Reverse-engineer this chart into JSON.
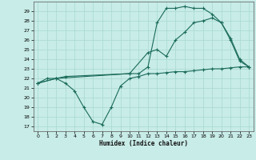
{
  "xlabel": "Humidex (Indice chaleur)",
  "bg_color": "#c8ece8",
  "grid_color": "#a8d8d0",
  "line_color": "#1a6b5a",
  "xlim": [
    -0.5,
    23.5
  ],
  "ylim": [
    16.5,
    30.0
  ],
  "yticks": [
    17,
    18,
    19,
    20,
    21,
    22,
    23,
    24,
    25,
    26,
    27,
    28,
    29
  ],
  "xticks": [
    0,
    1,
    2,
    3,
    4,
    5,
    6,
    7,
    8,
    9,
    10,
    11,
    12,
    13,
    14,
    15,
    16,
    17,
    18,
    19,
    20,
    21,
    22,
    23
  ],
  "line1_x": [
    0,
    1,
    2,
    3,
    4,
    5,
    6,
    7,
    8,
    9,
    10,
    11,
    12,
    13,
    14,
    15,
    16,
    17,
    18,
    19,
    20,
    21,
    22,
    23
  ],
  "line1_y": [
    21.5,
    22.0,
    22.0,
    21.5,
    20.7,
    19.0,
    17.5,
    17.2,
    19.0,
    21.2,
    22.0,
    22.2,
    22.5,
    22.5,
    22.6,
    22.7,
    22.7,
    22.8,
    22.9,
    23.0,
    23.0,
    23.1,
    23.2,
    23.2
  ],
  "line2_x": [
    0,
    2,
    3,
    10,
    11,
    12,
    13,
    14,
    15,
    16,
    17,
    18,
    19,
    20,
    21,
    22,
    23
  ],
  "line2_y": [
    21.5,
    22.0,
    22.2,
    22.5,
    22.5,
    23.2,
    27.8,
    29.3,
    29.3,
    29.5,
    29.3,
    29.3,
    28.7,
    27.8,
    26.2,
    24.0,
    23.2
  ],
  "line3_x": [
    0,
    2,
    10,
    12,
    13,
    14,
    15,
    16,
    17,
    18,
    19,
    20,
    21,
    22,
    23
  ],
  "line3_y": [
    21.5,
    22.0,
    22.5,
    24.7,
    25.0,
    24.3,
    26.0,
    26.8,
    27.8,
    28.0,
    28.3,
    27.8,
    26.0,
    23.8,
    23.2
  ]
}
